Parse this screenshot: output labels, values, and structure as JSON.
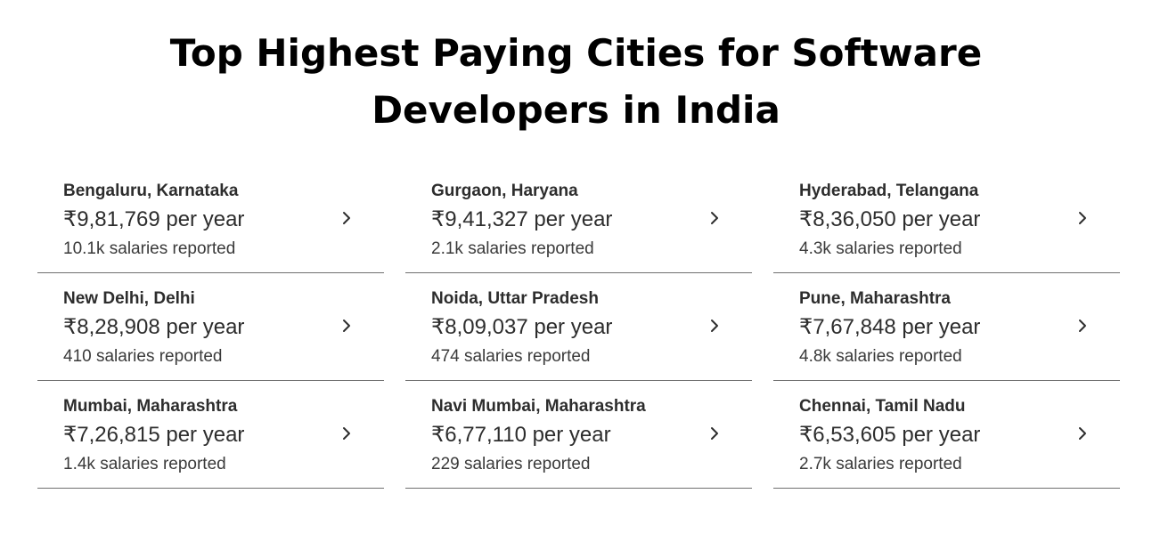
{
  "page": {
    "title_line1": "Top Highest Paying Cities for Software",
    "title_line2": "Developers in India"
  },
  "cities": [
    {
      "name": "Bengaluru, Karnataka",
      "salary": "₹9,81,769 per year",
      "reported": "10.1k salaries reported"
    },
    {
      "name": "Gurgaon, Haryana",
      "salary": "₹9,41,327 per year",
      "reported": "2.1k salaries reported"
    },
    {
      "name": "Hyderabad, Telangana",
      "salary": "₹8,36,050 per year",
      "reported": "4.3k salaries reported"
    },
    {
      "name": "New Delhi, Delhi",
      "salary": "₹8,28,908 per year",
      "reported": "410 salaries reported"
    },
    {
      "name": "Noida, Uttar Pradesh",
      "salary": "₹8,09,037 per year",
      "reported": "474 salaries reported"
    },
    {
      "name": "Pune, Maharashtra",
      "salary": "₹7,67,848 per year",
      "reported": "4.8k salaries reported"
    },
    {
      "name": "Mumbai, Maharashtra",
      "salary": "₹7,26,815 per year",
      "reported": "1.4k salaries reported"
    },
    {
      "name": "Navi Mumbai, Maharashtra",
      "salary": "₹6,77,110 per year",
      "reported": "229 salaries reported"
    },
    {
      "name": "Chennai, Tamil Nadu",
      "salary": "₹6,53,605 per year",
      "reported": "2.7k salaries reported"
    }
  ],
  "icons": {
    "card_arrow": "chevron-right-icon"
  }
}
